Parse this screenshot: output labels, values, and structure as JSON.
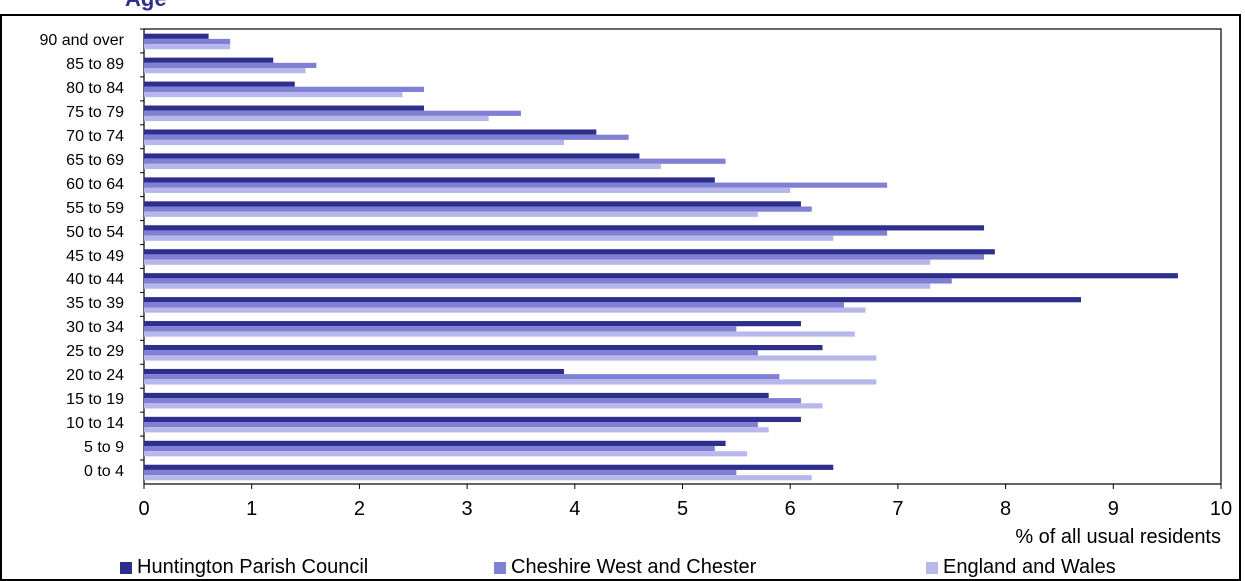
{
  "title": "Age",
  "chart_data": {
    "type": "bar",
    "orientation": "horizontal",
    "categories": [
      "0 to 4",
      "5 to 9",
      "10 to 14",
      "15 to 19",
      "20 to 24",
      "25 to 29",
      "30 to 34",
      "35 to 39",
      "40 to 44",
      "45 to 49",
      "50 to 54",
      "55 to 59",
      "60 to 64",
      "65 to 69",
      "70 to 74",
      "75 to 79",
      "80 to 84",
      "85 to 89",
      "90 and over"
    ],
    "series": [
      {
        "name": "Huntington Parish Council",
        "color": "#2e2e8c",
        "values": [
          6.4,
          5.4,
          6.1,
          5.8,
          3.9,
          6.3,
          6.1,
          8.7,
          9.6,
          7.9,
          7.8,
          6.1,
          5.3,
          4.6,
          4.2,
          2.6,
          1.4,
          1.2,
          0.6
        ]
      },
      {
        "name": "Cheshire West and Chester",
        "color": "#7f7fd4",
        "values": [
          5.5,
          5.3,
          5.7,
          6.1,
          5.9,
          5.7,
          5.5,
          6.5,
          7.5,
          7.8,
          6.9,
          6.2,
          6.9,
          5.4,
          4.5,
          3.5,
          2.6,
          1.6,
          0.8
        ]
      },
      {
        "name": "England and Wales",
        "color": "#b7b7ec",
        "values": [
          6.2,
          5.6,
          5.8,
          6.3,
          6.8,
          6.8,
          6.6,
          6.7,
          7.3,
          7.3,
          6.4,
          5.7,
          6.0,
          4.8,
          3.9,
          3.2,
          2.4,
          1.5,
          0.8
        ]
      }
    ],
    "xlim": [
      0,
      10
    ],
    "xticks": [
      "0",
      "1",
      "2",
      "3",
      "4",
      "5",
      "6",
      "7",
      "8",
      "9",
      "10"
    ],
    "xlabel": "% of all usual residents",
    "legend": "bottom"
  }
}
